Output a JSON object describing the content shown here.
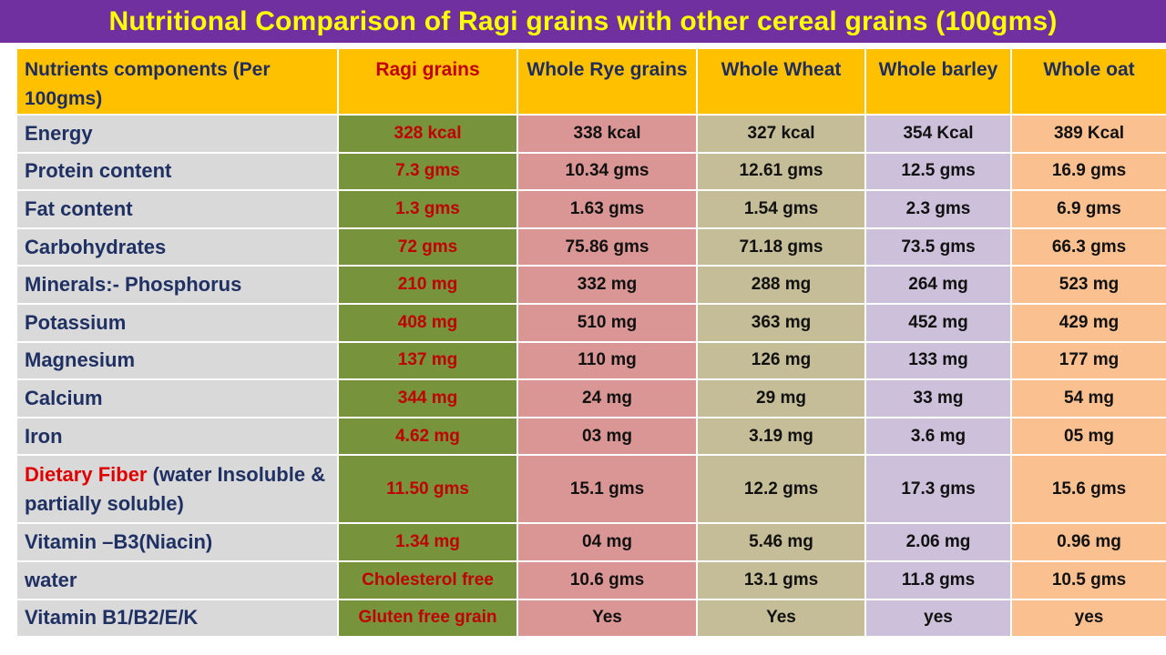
{
  "title": "Nutritional Comparison of Ragi grains with other cereal grains (100gms)",
  "colors": {
    "title_bg": "#7030a0",
    "title_text": "#ffff00",
    "header_bg": "#ffc000",
    "label_bg": "#d9d9d9",
    "ragi_bg": "#77933c",
    "rye_bg": "#da9694",
    "wheat_bg": "#c4bd97",
    "barley_bg": "#ccc0da",
    "oat_bg": "#fac090",
    "ragi_text": "#c00000",
    "label_text": "#1f3063"
  },
  "table": {
    "headers": [
      "Nutrients components (Per 100gms)",
      "Ragi grains",
      "Whole Rye grains",
      "Whole Wheat",
      "Whole barley",
      "Whole oat"
    ],
    "rows": [
      {
        "name": "Energy",
        "ragi": "328 kcal",
        "rye": "338 kcal",
        "wheat": "327 kcal",
        "barley": "354 Kcal",
        "oat": "389 Kcal"
      },
      {
        "name": "Protein content",
        "ragi": "7.3 gms",
        "rye": "10.34 gms",
        "wheat": "12.61 gms",
        "barley": "12.5 gms",
        "oat": "16.9 gms"
      },
      {
        "name": "Fat content",
        "ragi": "1.3 gms",
        "rye": "1.63 gms",
        "wheat": "1.54 gms",
        "barley": "2.3 gms",
        "oat": "6.9 gms"
      },
      {
        "name": "Carbohydrates",
        "ragi": "72 gms",
        "rye": "75.86 gms",
        "wheat": "71.18 gms",
        "barley": "73.5 gms",
        "oat": "66.3 gms"
      },
      {
        "name": "Minerals:- Phosphorus",
        "ragi": "210 mg",
        "rye": "332 mg",
        "wheat": "288 mg",
        "barley": "264 mg",
        "oat": "523 mg"
      },
      {
        "name": "Potassium",
        "ragi": "408 mg",
        "rye": "510 mg",
        "wheat": "363 mg",
        "barley": "452 mg",
        "oat": "429 mg"
      },
      {
        "name": "Magnesium",
        "ragi": "137 mg",
        "rye": "110 mg",
        "wheat": "126 mg",
        "barley": "133 mg",
        "oat": "177 mg"
      },
      {
        "name": "Calcium",
        "ragi": "344 mg",
        "rye": "24 mg",
        "wheat": "29 mg",
        "barley": "33 mg",
        "oat": "54 mg"
      },
      {
        "name": "Iron",
        "ragi": "4.62 mg",
        "rye": "03 mg",
        "wheat": "3.19 mg",
        "barley": "3.6 mg",
        "oat": "05 mg"
      },
      {
        "name_red": "Dietary Fiber",
        "name": " (water Insoluble & partially soluble)",
        "ragi": "11.50 gms",
        "rye": "15.1 gms",
        "wheat": "12.2 gms",
        "barley": "17.3  gms",
        "oat": "15.6  gms"
      },
      {
        "name": "Vitamin –B3(Niacin)",
        "ragi": "1.34 mg",
        "rye": "04 mg",
        "wheat": "5.46 mg",
        "barley": "2.06 mg",
        "oat": "0.96 mg"
      },
      {
        "name": "water",
        "ragi": "Cholesterol free",
        "rye": "10.6 gms",
        "wheat": "13.1  gms",
        "barley": "11.8 gms",
        "oat": "10.5 gms"
      },
      {
        "name": "Vitamin B1/B2/E/K",
        "ragi": "Gluten free grain",
        "rye": "Yes",
        "wheat": "Yes",
        "barley": "yes",
        "oat": "yes"
      }
    ]
  }
}
